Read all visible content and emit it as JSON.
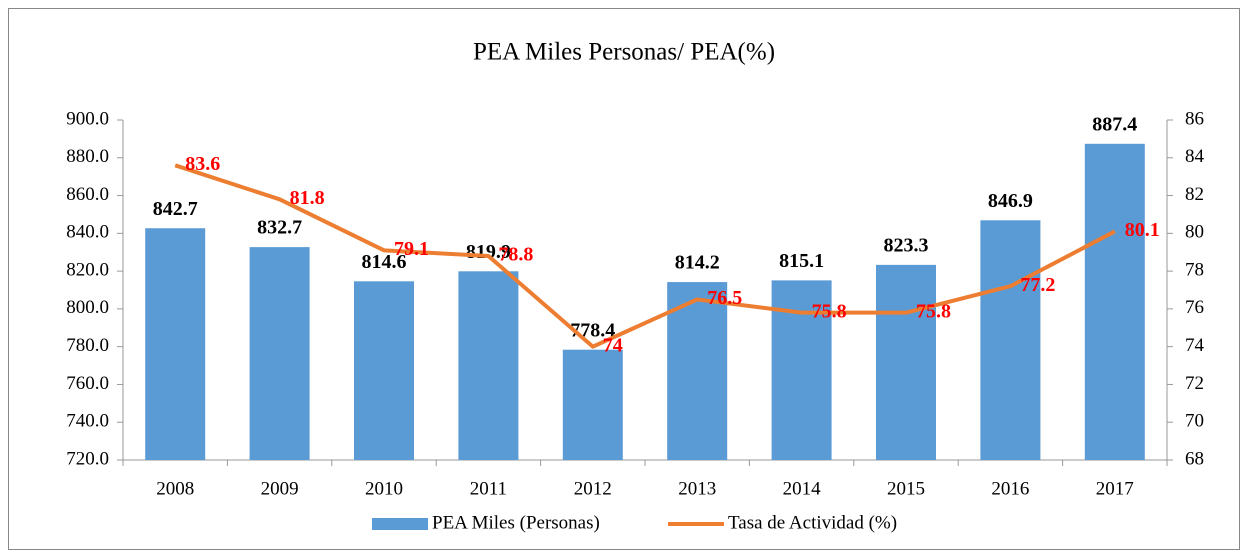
{
  "chart_data": {
    "type": "combo",
    "title": "PEA Miles  Personas/ PEA(%)",
    "categories": [
      "2008",
      "2009",
      "2010",
      "2011",
      "2012",
      "2013",
      "2014",
      "2015",
      "2016",
      "2017"
    ],
    "series": [
      {
        "name": "PEA Miles (Personas)",
        "type": "bar",
        "color": "#5b9bd5",
        "label_color": "#000000",
        "values": [
          842.7,
          832.7,
          814.6,
          819.9,
          778.4,
          814.2,
          815.1,
          823.3,
          846.9,
          887.4
        ]
      },
      {
        "name": "Tasa de Actividad (%)",
        "type": "line",
        "axis": "y2",
        "color": "#ed7d31",
        "label_color": "#ff0000",
        "values": [
          83.6,
          81.8,
          79.1,
          78.8,
          74,
          76.5,
          75.8,
          75.8,
          77.2,
          80.1
        ]
      }
    ],
    "ylim": [
      720,
      900
    ],
    "yticks": [
      {
        "value": 720,
        "label": "720.0"
      },
      {
        "value": 740,
        "label": "740.0"
      },
      {
        "value": 760,
        "label": "760.0"
      },
      {
        "value": 780,
        "label": "780.0"
      },
      {
        "value": 800,
        "label": "800.0"
      },
      {
        "value": 820,
        "label": "820.0"
      },
      {
        "value": 840,
        "label": "840.0"
      },
      {
        "value": 860,
        "label": "860.0"
      },
      {
        "value": 880,
        "label": "880.0"
      },
      {
        "value": 900,
        "label": "900.0"
      }
    ],
    "y2lim": [
      68,
      86
    ],
    "y2ticks": [
      68,
      70,
      72,
      74,
      76,
      78,
      80,
      82,
      84,
      86
    ],
    "legend": "bottom"
  }
}
